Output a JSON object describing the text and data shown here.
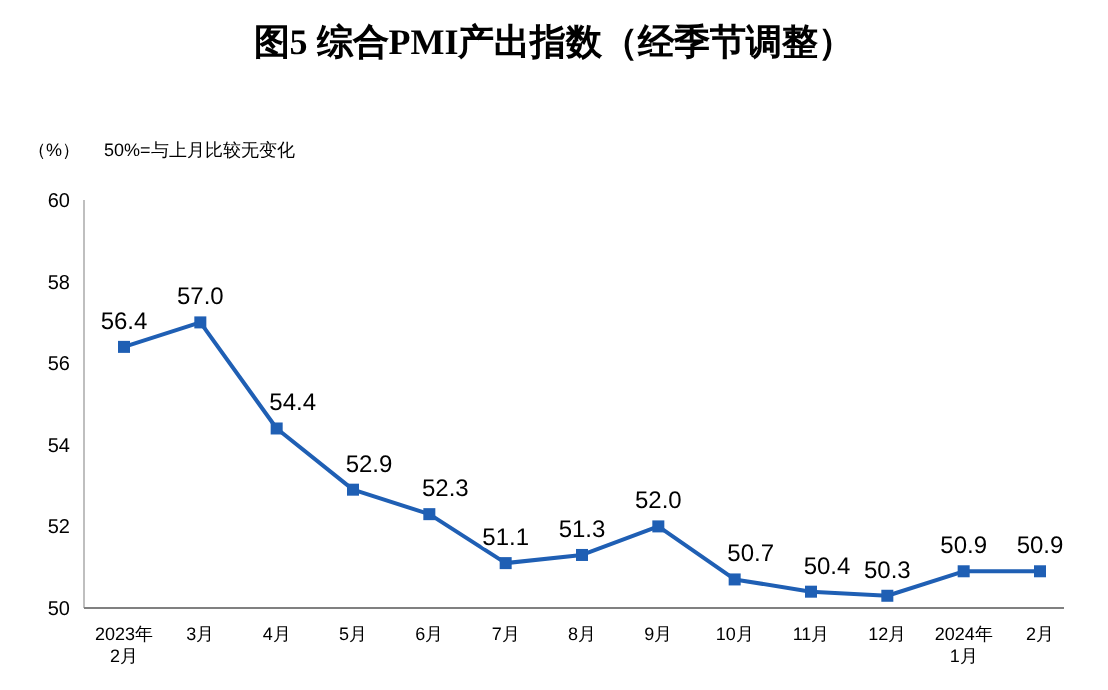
{
  "chart_data": {
    "type": "line",
    "title": "图5  综合PMI产出指数（经季节调整）",
    "ylabel": "（%）",
    "annotations": [
      "50%=与上月比较无变化"
    ],
    "categories": [
      "2023年\n2月",
      "3月",
      "4月",
      "5月",
      "6月",
      "7月",
      "8月",
      "9月",
      "10月",
      "11月",
      "12月",
      "2024年\n1月",
      "2月"
    ],
    "series": [
      {
        "color": "#1f5fb4",
        "values": [
          56.4,
          57.0,
          54.4,
          52.9,
          52.3,
          51.1,
          51.3,
          52.0,
          50.7,
          50.4,
          50.3,
          50.9,
          50.9
        ],
        "value_labels": [
          "56.4",
          "57.0",
          "54.4",
          "52.9",
          "52.3",
          "51.1",
          "51.3",
          "52.0",
          "50.7",
          "50.4",
          "50.3",
          "50.9",
          "50.9"
        ]
      }
    ],
    "ylim": [
      50,
      60
    ],
    "yticks": [
      50,
      52,
      54,
      56,
      58,
      60
    ],
    "marker": "square",
    "line_style": "solid"
  }
}
